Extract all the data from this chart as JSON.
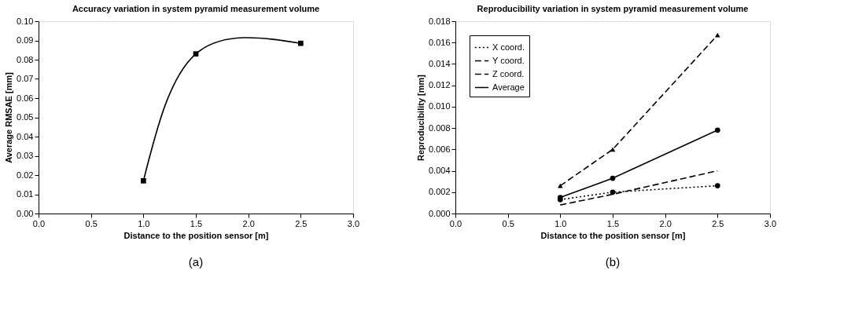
{
  "chart_data": [
    {
      "type": "line",
      "title": "Accuracy variation in system pyramid measurement volume",
      "xlabel": "Distance to the position sensor [m]",
      "ylabel": "Average RMSAE [mm]",
      "series": [
        {
          "color": "#000000",
          "x": [
            1.0,
            1.5,
            2.5
          ],
          "values": [
            0.017,
            0.083,
            0.0885
          ],
          "marker": "square",
          "line_style": "solid"
        }
      ],
      "xlim": [
        0,
        3
      ],
      "xticks": [
        {
          "value": 0,
          "label": "0.0"
        },
        {
          "value": 0.5,
          "label": "0.5"
        },
        {
          "value": 1,
          "label": "1.0"
        },
        {
          "value": 1.5,
          "label": "1.5"
        },
        {
          "value": 2,
          "label": "2.0"
        },
        {
          "value": 2.5,
          "label": "2.5"
        },
        {
          "value": 3,
          "label": "3.0"
        }
      ],
      "ylim": [
        0,
        0.1
      ],
      "yticks": [
        {
          "value": 0,
          "label": "0.00"
        },
        {
          "value": 0.01,
          "label": "0.01"
        },
        {
          "value": 0.02,
          "label": "0.02"
        },
        {
          "value": 0.03,
          "label": "0.03"
        },
        {
          "value": 0.04,
          "label": "0.04"
        },
        {
          "value": 0.05,
          "label": "0.05"
        },
        {
          "value": 0.06,
          "label": "0.06"
        },
        {
          "value": 0.07,
          "label": "0.07"
        },
        {
          "value": 0.08,
          "label": "0.08"
        },
        {
          "value": 0.09,
          "label": "0.09"
        },
        {
          "value": 0.1,
          "label": "0.10"
        }
      ],
      "grid": false,
      "legend": false,
      "annotations": [
        "(a)"
      ]
    },
    {
      "type": "line",
      "title": "Reproducibility variation in system pyramid measurement volume",
      "xlabel": "Distance to the position sensor [m]",
      "ylabel": "Reproducibility [mm]",
      "series": [
        {
          "name": "X coord.",
          "color": "#000000",
          "x": [
            1.0,
            1.5,
            2.5
          ],
          "values": [
            0.0013,
            0.002,
            0.0026
          ],
          "marker": "circle",
          "line_style": "dotted"
        },
        {
          "name": "Y coord.",
          "color": "#000000",
          "x": [
            1.0,
            1.5,
            2.5
          ],
          "values": [
            0.0008,
            0.0018,
            0.004
          ],
          "marker": "none",
          "line_style": "dashed"
        },
        {
          "name": "Z coord.",
          "color": "#000000",
          "x": [
            1.0,
            1.5,
            2.5
          ],
          "values": [
            0.0026,
            0.006,
            0.0167
          ],
          "marker": "triangle",
          "line_style": "dashed"
        },
        {
          "name": "Average",
          "color": "#000000",
          "x": [
            1.0,
            1.5,
            2.5
          ],
          "values": [
            0.0015,
            0.0033,
            0.0078
          ],
          "marker": "circle",
          "line_style": "solid"
        }
      ],
      "xlim": [
        0,
        3
      ],
      "xticks": [
        {
          "value": 0,
          "label": "0.0"
        },
        {
          "value": 0.5,
          "label": "0.5"
        },
        {
          "value": 1,
          "label": "1.0"
        },
        {
          "value": 1.5,
          "label": "1.5"
        },
        {
          "value": 2,
          "label": "2.0"
        },
        {
          "value": 2.5,
          "label": "2.5"
        },
        {
          "value": 3,
          "label": "3.0"
        }
      ],
      "ylim": [
        0,
        0.018
      ],
      "yticks": [
        {
          "value": 0,
          "label": "0.000"
        },
        {
          "value": 0.002,
          "label": "0.002"
        },
        {
          "value": 0.004,
          "label": "0.004"
        },
        {
          "value": 0.006,
          "label": "0.006"
        },
        {
          "value": 0.008,
          "label": "0.008"
        },
        {
          "value": 0.01,
          "label": "0.010"
        },
        {
          "value": 0.012,
          "label": "0.012"
        },
        {
          "value": 0.014,
          "label": "0.014"
        },
        {
          "value": 0.016,
          "label": "0.016"
        },
        {
          "value": 0.018,
          "label": "0.018"
        }
      ],
      "grid": false,
      "legend": "top left",
      "annotations": [
        "(b)"
      ]
    }
  ]
}
